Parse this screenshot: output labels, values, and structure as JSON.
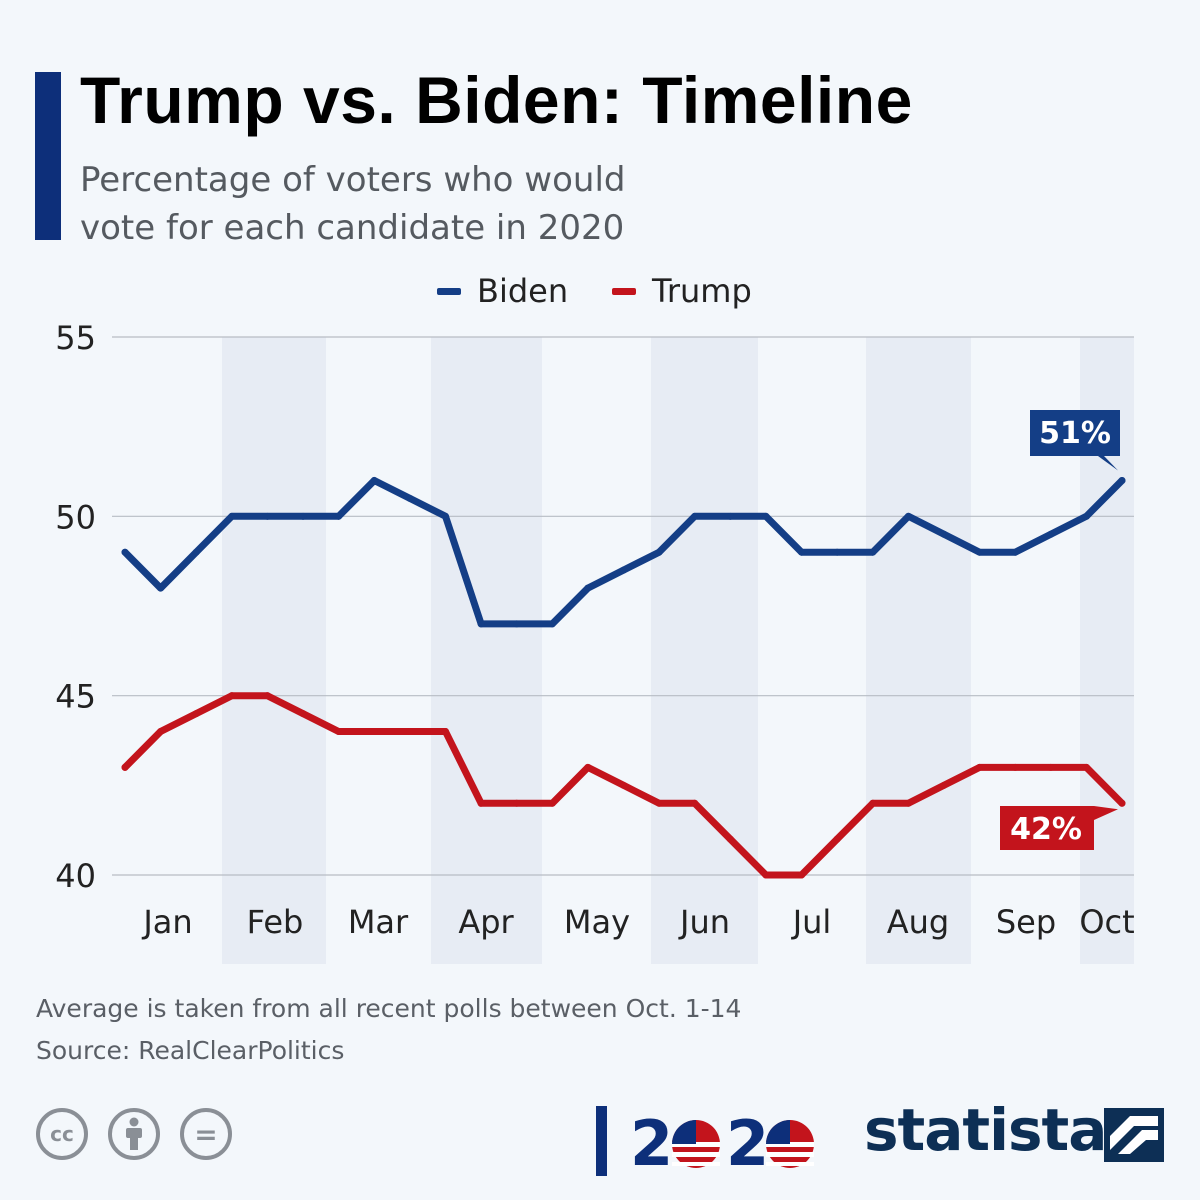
{
  "title": "Trump vs. Biden: Timeline",
  "subtitle": "Percentage of voters who would vote for each candidate in 2020",
  "colors": {
    "accent": "#0d2f7a",
    "biden": "#143e86",
    "trump": "#c3141c",
    "band": "#e7ecf4",
    "grid": "#b7bcc4"
  },
  "legend": [
    {
      "label": "Biden",
      "color": "#143e86"
    },
    {
      "label": "Trump",
      "color": "#c3141c"
    }
  ],
  "chart_data": {
    "type": "line",
    "x_ticks": [
      "Jan",
      "Feb",
      "Mar",
      "Apr",
      "May",
      "Jun",
      "Jul",
      "Aug",
      "Sep",
      "Oct"
    ],
    "y_ticks": [
      40,
      45,
      50,
      55
    ],
    "ylim": [
      40,
      55
    ],
    "grid": true,
    "legend_position": "top-center",
    "series": [
      {
        "name": "Biden",
        "color": "#143e86",
        "values": [
          49,
          48,
          49,
          50,
          50,
          50,
          50,
          51,
          50.5,
          50,
          47,
          47,
          47,
          48,
          48.5,
          49,
          50,
          50,
          50,
          49,
          49,
          49,
          50,
          49.5,
          49,
          49,
          49.5,
          50,
          51
        ],
        "end_label": "51%"
      },
      {
        "name": "Trump",
        "color": "#c3141c",
        "values": [
          43,
          44,
          44.5,
          45,
          45,
          44.5,
          44,
          44,
          44,
          44,
          42,
          42,
          42,
          43,
          42.5,
          42,
          42,
          41,
          40,
          40,
          41,
          42,
          42,
          42.5,
          43,
          43,
          43,
          43,
          42
        ],
        "end_label": "42%"
      }
    ]
  },
  "footnote": "Average is taken from all recent polls between Oct. 1-14",
  "source": "Source: RealClearPolitics",
  "footer": {
    "license_icons": [
      "cc-icon",
      "attribution-icon",
      "no-derivatives-icon"
    ],
    "cc_text": "cc",
    "nd_text": "=",
    "logo_2020": "2020",
    "brand": "statista"
  }
}
